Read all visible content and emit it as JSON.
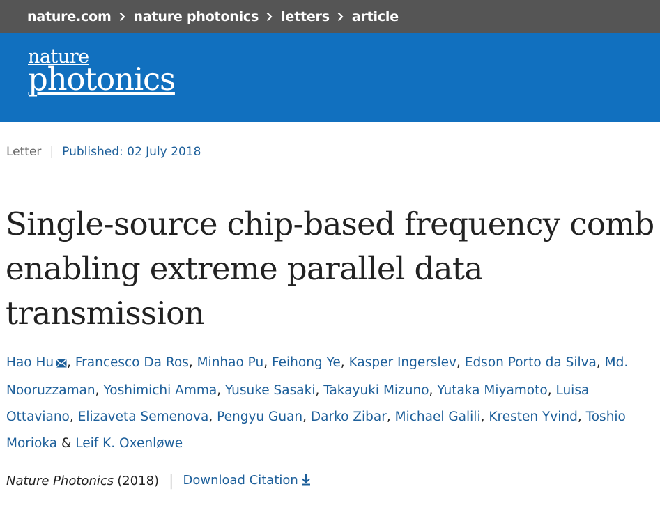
{
  "breadcrumb": {
    "items": [
      "nature.com",
      "nature photonics",
      "letters",
      "article"
    ]
  },
  "masthead": {
    "logo_line1": "nature",
    "logo_line2": "photonics"
  },
  "article": {
    "type": "Letter",
    "published": "Published: 02 July 2018",
    "title": "Single-source chip-based frequency comb enabling extreme parallel data transmission",
    "authors": [
      "Hao Hu",
      "Francesco Da Ros",
      "Minhao Pu",
      "Feihong Ye",
      "Kasper Ingerslev",
      "Edson Porto da Silva",
      "Md. Nooruzzaman",
      "Yoshimichi Amma",
      "Yusuke Sasaki",
      "Takayuki Mizuno",
      "Yutaka Miyamoto",
      "Luisa Ottaviano",
      "Elizaveta Semenova",
      "Pengyu Guan",
      "Darko Zibar",
      "Michael Galili",
      "Kresten Yvind",
      "Toshio Morioka",
      "Leif K. Oxenløwe"
    ],
    "author_separator": ", ",
    "author_last_separator": " & ",
    "journal": "Nature Photonics",
    "year": "(2018)",
    "download_citation": "Download Citation"
  },
  "colors": {
    "breadcrumb_bg": "#555555",
    "masthead_bg": "#1170bf",
    "link": "#1d5f9a"
  },
  "icons": {
    "separator": "chevron-right-icon",
    "email": "envelope-icon",
    "download": "download-arrow-icon"
  }
}
